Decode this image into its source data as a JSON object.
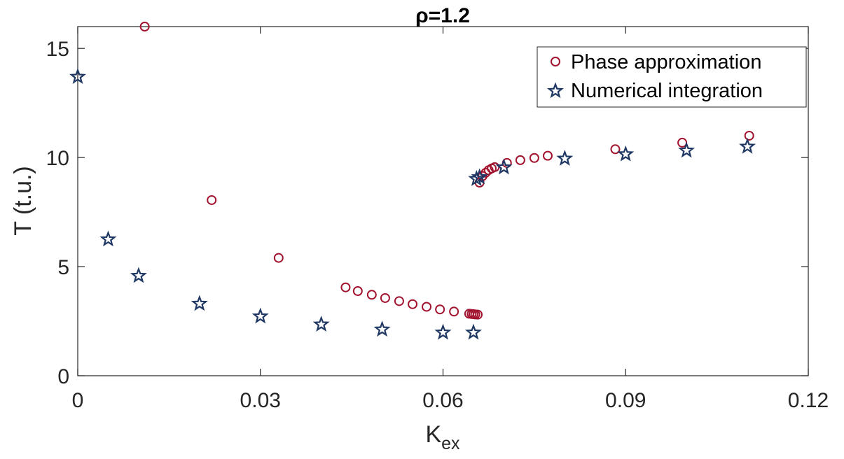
{
  "chart_data": {
    "type": "scatter",
    "title": "ρ=1.2",
    "xlabel": "K",
    "xlabel_sub": "ex",
    "ylabel": "T (t.u.)",
    "xlim": [
      0,
      0.12
    ],
    "ylim": [
      0,
      16
    ],
    "xticks": [
      "0",
      "0.03",
      "0.06",
      "0.09",
      "0.12"
    ],
    "xtick_values": [
      0,
      0.03,
      0.06,
      0.09,
      0.12
    ],
    "yticks": [
      "0",
      "5",
      "10",
      "15"
    ],
    "ytick_values": [
      0,
      5,
      10,
      15
    ],
    "grid": false,
    "legend_position": "top-right",
    "series": [
      {
        "name": "Phase approximation",
        "marker": "circle",
        "color": "#a2142f",
        "x": [
          0.011,
          0.022,
          0.033,
          0.044,
          0.046,
          0.0483,
          0.0505,
          0.0528,
          0.055,
          0.0573,
          0.0595,
          0.0618,
          0.0643,
          0.0647,
          0.065,
          0.0653,
          0.0657,
          0.066,
          0.0665,
          0.067,
          0.0675,
          0.068,
          0.0685,
          0.0705,
          0.0727,
          0.075,
          0.0772,
          0.0883,
          0.0993,
          0.1103
        ],
        "y": [
          16.0,
          8.05,
          5.4,
          4.05,
          3.88,
          3.71,
          3.56,
          3.42,
          3.28,
          3.16,
          3.04,
          2.94,
          2.84,
          2.83,
          2.82,
          2.81,
          2.8,
          8.85,
          9.15,
          9.3,
          9.42,
          9.5,
          9.56,
          9.75,
          9.88,
          9.98,
          10.08,
          10.38,
          10.68,
          11.0
        ]
      },
      {
        "name": "Numerical integration",
        "marker": "star",
        "color": "#203864",
        "x": [
          0.0,
          0.005,
          0.01,
          0.02,
          0.03,
          0.04,
          0.05,
          0.06,
          0.065,
          0.0655,
          0.066,
          0.07,
          0.08,
          0.09,
          0.1,
          0.11
        ],
        "y": [
          13.7,
          6.25,
          4.58,
          3.3,
          2.72,
          2.35,
          2.12,
          1.98,
          1.98,
          9.02,
          9.1,
          9.55,
          9.95,
          10.15,
          10.32,
          10.5
        ]
      }
    ]
  }
}
